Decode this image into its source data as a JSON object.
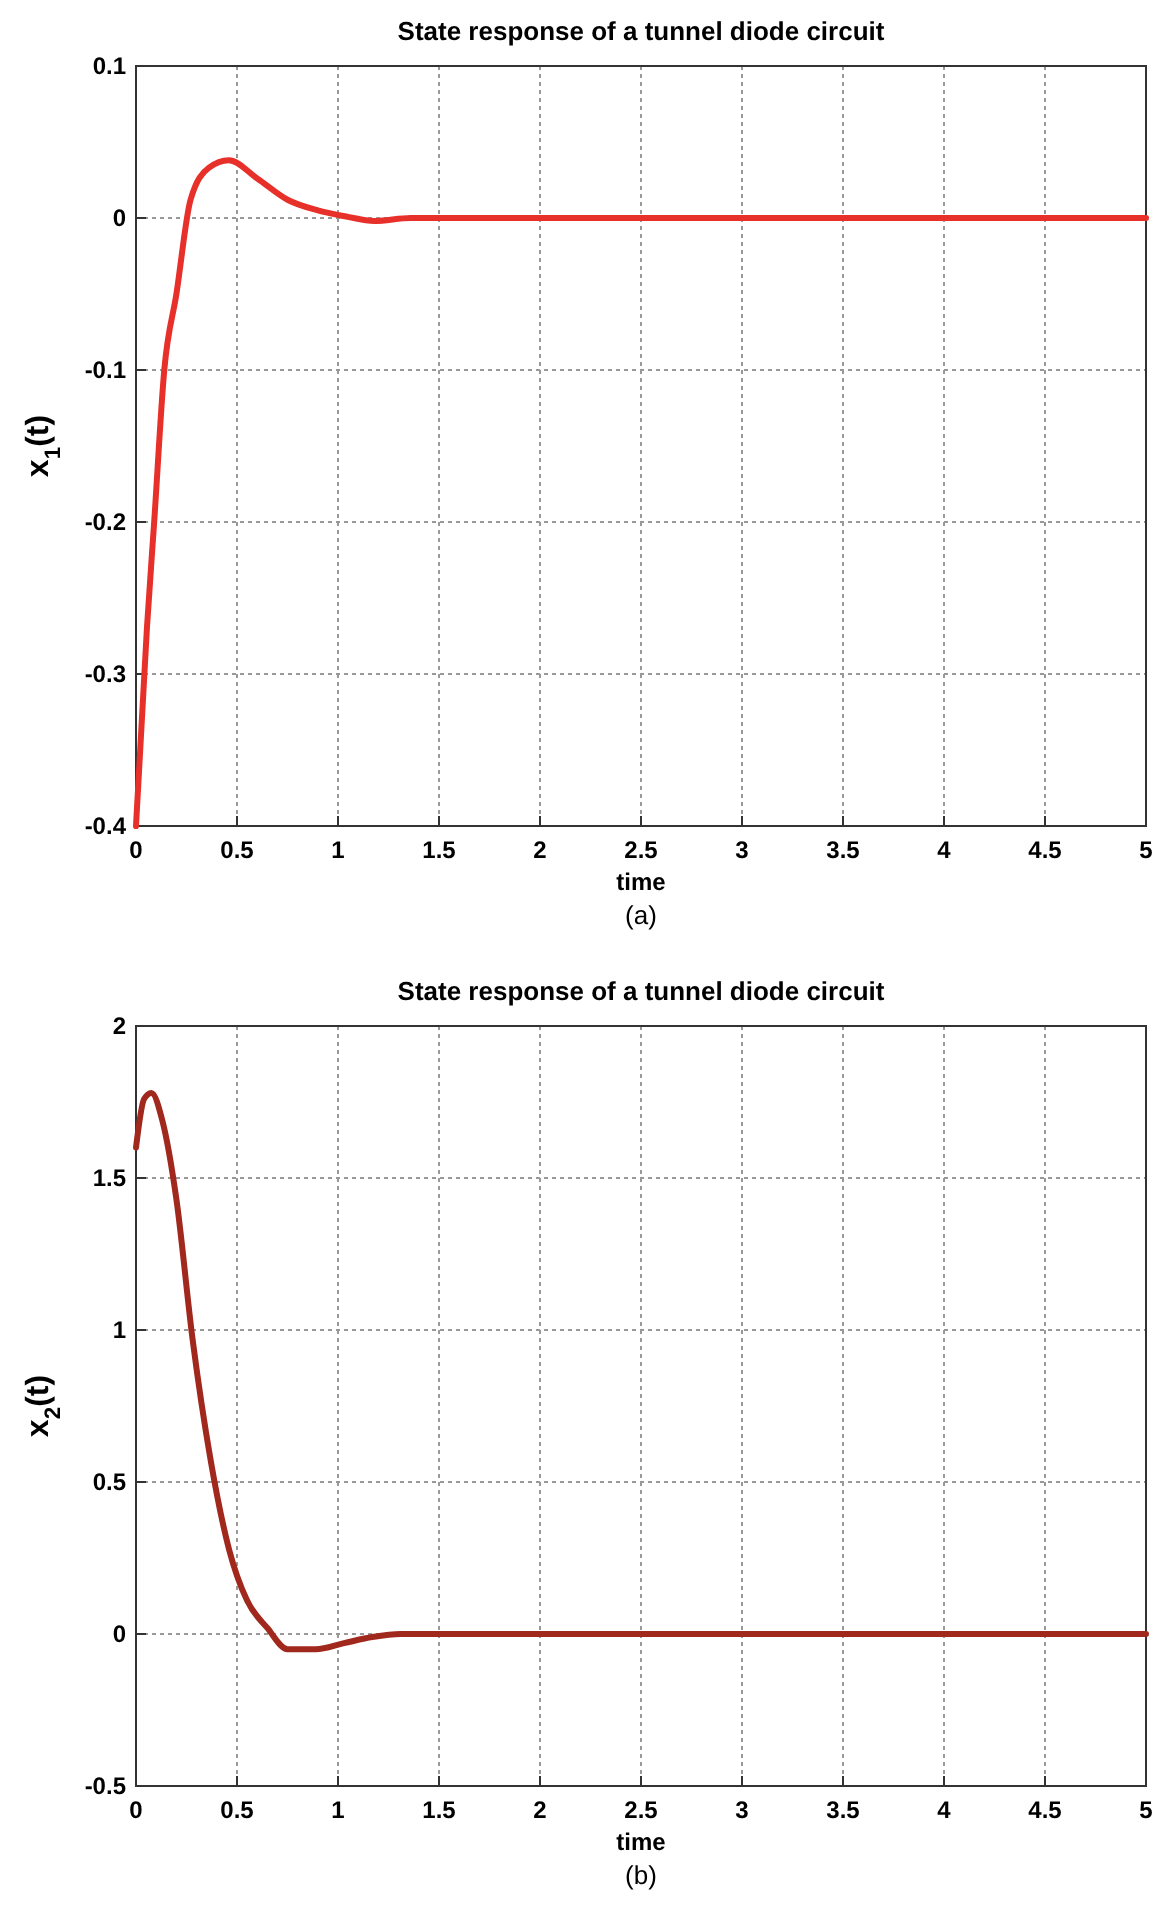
{
  "chart_data": [
    {
      "type": "line",
      "title": "State response of a tunnel diode circuit",
      "xlabel": "time",
      "ylabel": "x$_{1}$(t)",
      "annotations": [
        "(a)"
      ],
      "grid": true,
      "line_style": "solid",
      "marker": "none",
      "xlim": [
        0,
        5
      ],
      "xticks": [
        0,
        0.5,
        1,
        1.5,
        2,
        2.5,
        3,
        3.5,
        4,
        4.5,
        5
      ],
      "ylim": [
        -0.4,
        0.1
      ],
      "yticks": [
        -0.4,
        -0.3,
        -0.2,
        -0.1,
        0,
        0.1
      ],
      "series": [
        {
          "color": "#e8302a",
          "x": [
            0,
            0.054,
            0.09,
            0.14,
            0.2,
            0.27,
            0.36,
            0.46,
            0.6,
            0.75,
            0.9,
            1.04,
            1.18,
            1.36,
            2,
            3,
            4,
            5
          ],
          "values": [
            -0.4,
            -0.27,
            -0.2,
            -0.1,
            -0.05,
            0.012,
            0.033,
            0.038,
            0.026,
            0.012,
            0.005,
            0.001,
            -0.002,
            0,
            0,
            0,
            0,
            0
          ]
        }
      ]
    },
    {
      "type": "line",
      "title": "State response of a tunnel diode circuit",
      "xlabel": "time",
      "ylabel": "x$_{2}$(t)",
      "annotations": [
        "(b)"
      ],
      "grid": true,
      "line_style": "solid",
      "marker": "none",
      "xlim": [
        0,
        5
      ],
      "xticks": [
        0,
        0.5,
        1,
        1.5,
        2,
        2.5,
        3,
        3.5,
        4,
        4.5,
        5
      ],
      "ylim": [
        -0.5,
        2
      ],
      "yticks": [
        -0.5,
        0,
        0.5,
        1,
        1.5,
        2
      ],
      "series": [
        {
          "color": "#a0281c",
          "x": [
            0,
            0.04,
            0.076,
            0.13,
            0.2,
            0.28,
            0.37,
            0.46,
            0.55,
            0.65,
            0.75,
            0.89,
            1.03,
            1.17,
            1.31,
            2,
            3,
            4,
            5
          ],
          "values": [
            1.6,
            1.76,
            1.78,
            1.69,
            1.43,
            0.97,
            0.57,
            0.28,
            0.11,
            0.02,
            -0.05,
            -0.05,
            -0.03,
            -0.01,
            0,
            0,
            0,
            0,
            0
          ]
        }
      ]
    }
  ]
}
